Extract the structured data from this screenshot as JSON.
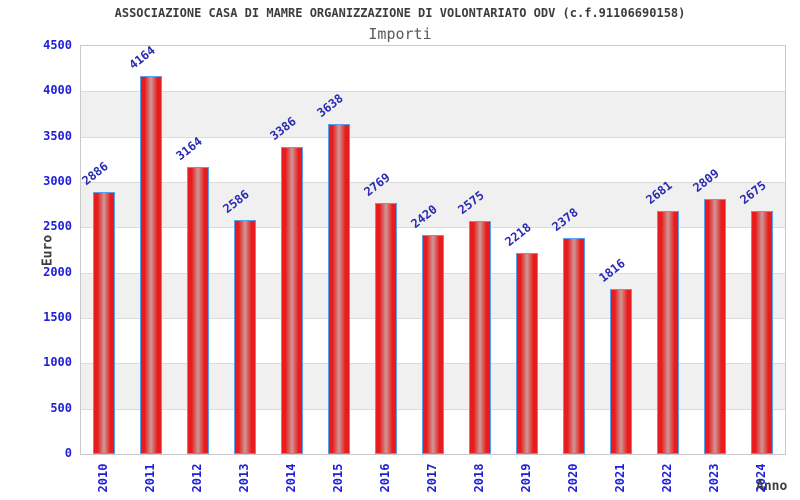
{
  "chart_data": {
    "type": "bar",
    "title": "ASSOCIAZIONE CASA DI MAMRE ORGANIZZAZIONE DI VOLONTARIATO ODV (c.f.91106690158)",
    "subtitle": "Importi",
    "xlabel": "Anno",
    "ylabel": "Euro",
    "categories": [
      "2010",
      "2011",
      "2012",
      "2013",
      "2014",
      "2015",
      "2016",
      "2017",
      "2018",
      "2019",
      "2020",
      "2021",
      "2022",
      "2023",
      "2024"
    ],
    "values": [
      2886,
      4164,
      3164,
      2586,
      3386,
      3638,
      2769,
      2420,
      2575,
      2218,
      2378,
      1816,
      2681,
      2809,
      2675
    ],
    "ylim": [
      0,
      4500
    ],
    "ytick_step": 500,
    "grid": "horizontal alternating bands, gridline every 500",
    "legend": "none",
    "value_labels": "above bars, rotated",
    "colors": {
      "bar_fill": "#e81c1c",
      "bar_highlight": "#cf9191",
      "bar_border": "#55a0f0",
      "tick_label": "#1f1fd6",
      "value_label": "#2a2ab4",
      "band": "#f0f0f0",
      "title": "#3c3c3c",
      "subtitle": "#5a5a5a"
    }
  }
}
